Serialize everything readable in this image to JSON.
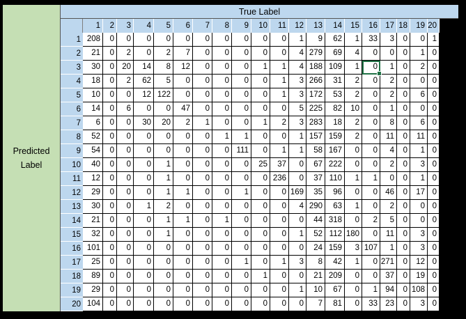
{
  "headers": {
    "predicted_line1": "Predicted",
    "predicted_line2": "Label",
    "true_label": "True Label"
  },
  "col_labels": [
    "1",
    "2",
    "3",
    "4",
    "5",
    "6",
    "7",
    "8",
    "9",
    "10",
    "11",
    "12",
    "13",
    "14",
    "15",
    "16",
    "17",
    "18",
    "19",
    "20"
  ],
  "row_labels": [
    "1",
    "2",
    "3",
    "4",
    "5",
    "6",
    "7",
    "8",
    "9",
    "10",
    "11",
    "12",
    "13",
    "14",
    "15",
    "16",
    "17",
    "18",
    "19",
    "20"
  ],
  "matrix": [
    [
      208,
      0,
      0,
      0,
      0,
      0,
      0,
      0,
      0,
      0,
      0,
      1,
      9,
      62,
      1,
      33,
      3,
      0,
      0,
      1
    ],
    [
      21,
      0,
      2,
      0,
      2,
      7,
      0,
      0,
      0,
      0,
      0,
      4,
      279,
      69,
      4,
      0,
      0,
      0,
      1,
      0
    ],
    [
      30,
      0,
      20,
      14,
      8,
      12,
      0,
      0,
      0,
      1,
      1,
      4,
      188,
      109,
      1,
      0,
      1,
      0,
      2,
      0
    ],
    [
      18,
      0,
      2,
      62,
      5,
      0,
      0,
      0,
      0,
      0,
      1,
      3,
      266,
      31,
      2,
      0,
      2,
      0,
      0,
      0
    ],
    [
      10,
      0,
      0,
      12,
      122,
      0,
      0,
      0,
      0,
      0,
      1,
      3,
      172,
      53,
      2,
      0,
      2,
      0,
      6,
      0
    ],
    [
      14,
      0,
      6,
      0,
      0,
      47,
      0,
      0,
      0,
      0,
      0,
      5,
      225,
      82,
      10,
      0,
      1,
      0,
      0,
      0
    ],
    [
      6,
      0,
      0,
      30,
      20,
      2,
      1,
      0,
      0,
      1,
      2,
      3,
      283,
      18,
      2,
      0,
      8,
      0,
      6,
      0
    ],
    [
      52,
      0,
      0,
      0,
      0,
      0,
      0,
      1,
      1,
      0,
      0,
      1,
      157,
      159,
      2,
      0,
      11,
      0,
      11,
      0
    ],
    [
      54,
      0,
      0,
      0,
      0,
      0,
      0,
      0,
      111,
      0,
      1,
      1,
      58,
      167,
      0,
      0,
      4,
      0,
      1,
      0
    ],
    [
      40,
      0,
      0,
      0,
      1,
      0,
      0,
      0,
      0,
      25,
      37,
      0,
      67,
      222,
      0,
      0,
      2,
      0,
      3,
      0
    ],
    [
      12,
      0,
      0,
      0,
      1,
      0,
      0,
      0,
      0,
      0,
      236,
      0,
      37,
      110,
      1,
      1,
      0,
      0,
      1,
      0
    ],
    [
      29,
      0,
      0,
      0,
      1,
      1,
      0,
      0,
      1,
      0,
      0,
      169,
      35,
      96,
      0,
      0,
      46,
      0,
      17,
      0
    ],
    [
      30,
      0,
      0,
      1,
      2,
      0,
      0,
      0,
      0,
      0,
      0,
      4,
      290,
      63,
      1,
      0,
      2,
      0,
      0,
      0
    ],
    [
      21,
      0,
      0,
      0,
      1,
      1,
      0,
      1,
      0,
      0,
      0,
      0,
      44,
      318,
      0,
      2,
      5,
      0,
      0,
      0
    ],
    [
      32,
      0,
      0,
      0,
      1,
      0,
      0,
      0,
      0,
      0,
      0,
      1,
      52,
      112,
      180,
      0,
      11,
      0,
      3,
      0
    ],
    [
      101,
      0,
      0,
      0,
      0,
      0,
      0,
      0,
      0,
      0,
      0,
      0,
      24,
      159,
      3,
      107,
      1,
      0,
      3,
      0
    ],
    [
      25,
      0,
      0,
      0,
      0,
      0,
      0,
      0,
      1,
      0,
      1,
      3,
      8,
      42,
      1,
      0,
      271,
      0,
      12,
      0
    ],
    [
      89,
      0,
      0,
      0,
      0,
      0,
      0,
      0,
      0,
      1,
      0,
      0,
      21,
      209,
      0,
      0,
      37,
      0,
      19,
      0
    ],
    [
      29,
      0,
      0,
      0,
      0,
      0,
      0,
      0,
      0,
      0,
      0,
      1,
      10,
      67,
      0,
      1,
      94,
      0,
      108,
      0
    ],
    [
      104,
      0,
      0,
      0,
      0,
      0,
      0,
      0,
      0,
      0,
      0,
      0,
      7,
      81,
      0,
      33,
      23,
      0,
      3,
      0
    ]
  ],
  "selected_cell": {
    "row": "3",
    "col": "16",
    "value": 0
  }
}
